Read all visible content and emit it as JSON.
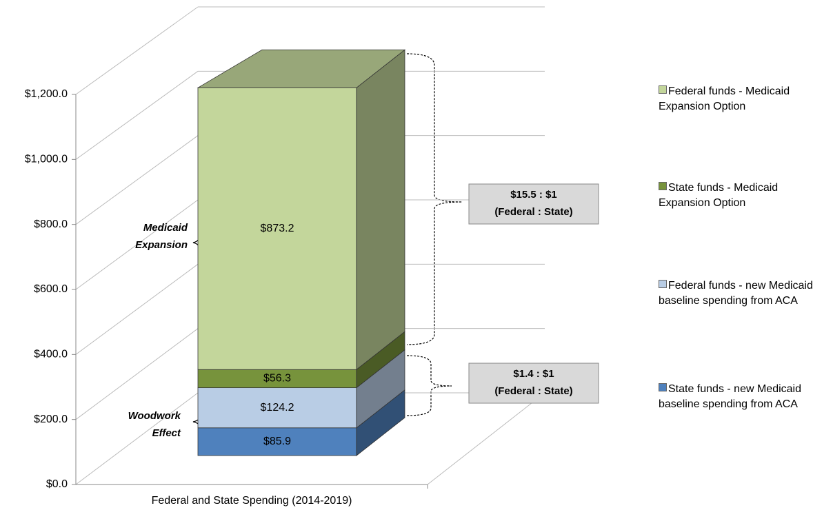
{
  "chart_data": {
    "type": "stacked_bar_3d",
    "categories": [
      "Federal and State Spending (2014-2019)"
    ],
    "series": [
      {
        "name": "State funds - new Medicaid baseline spending from ACA",
        "color": "#4f81bd",
        "values": [
          85.9
        ],
        "value_labels": [
          "$85.9"
        ]
      },
      {
        "name": "Federal funds - new Medicaid baseline spending from ACA",
        "color": "#b9cde5",
        "values": [
          124.2
        ],
        "value_labels": [
          "$124.2"
        ]
      },
      {
        "name": "State funds - Medicaid Expansion Option",
        "color": "#77933c",
        "values": [
          56.3
        ],
        "value_labels": [
          "$56.3"
        ]
      },
      {
        "name": "Federal  funds - Medicaid Expansion Option",
        "color": "#c3d69b",
        "values": [
          873.2
        ],
        "value_labels": [
          "$873.2"
        ]
      }
    ],
    "ylim": [
      0,
      1200
    ],
    "yticks": [
      {
        "value": 0,
        "label": "$0.0"
      },
      {
        "value": 200,
        "label": "$200.0"
      },
      {
        "value": 400,
        "label": "$400.0"
      },
      {
        "value": 600,
        "label": "$600.0"
      },
      {
        "value": 800,
        "label": "$800.0"
      },
      {
        "value": 1000,
        "label": "$1,000.0"
      },
      {
        "value": 1200,
        "label": "$1,200.0"
      }
    ],
    "grid": true,
    "legend": "right",
    "annotations": [
      {
        "lines": [
          "Medicaid",
          "Expansion"
        ]
      },
      {
        "lines": [
          "Woodwork",
          "Effect"
        ]
      },
      {
        "lines": [
          "$15.5 : $1",
          "(Federal : State)"
        ]
      },
      {
        "lines": [
          "$1.4 : $1",
          "(Federal : State)"
        ]
      }
    ]
  }
}
